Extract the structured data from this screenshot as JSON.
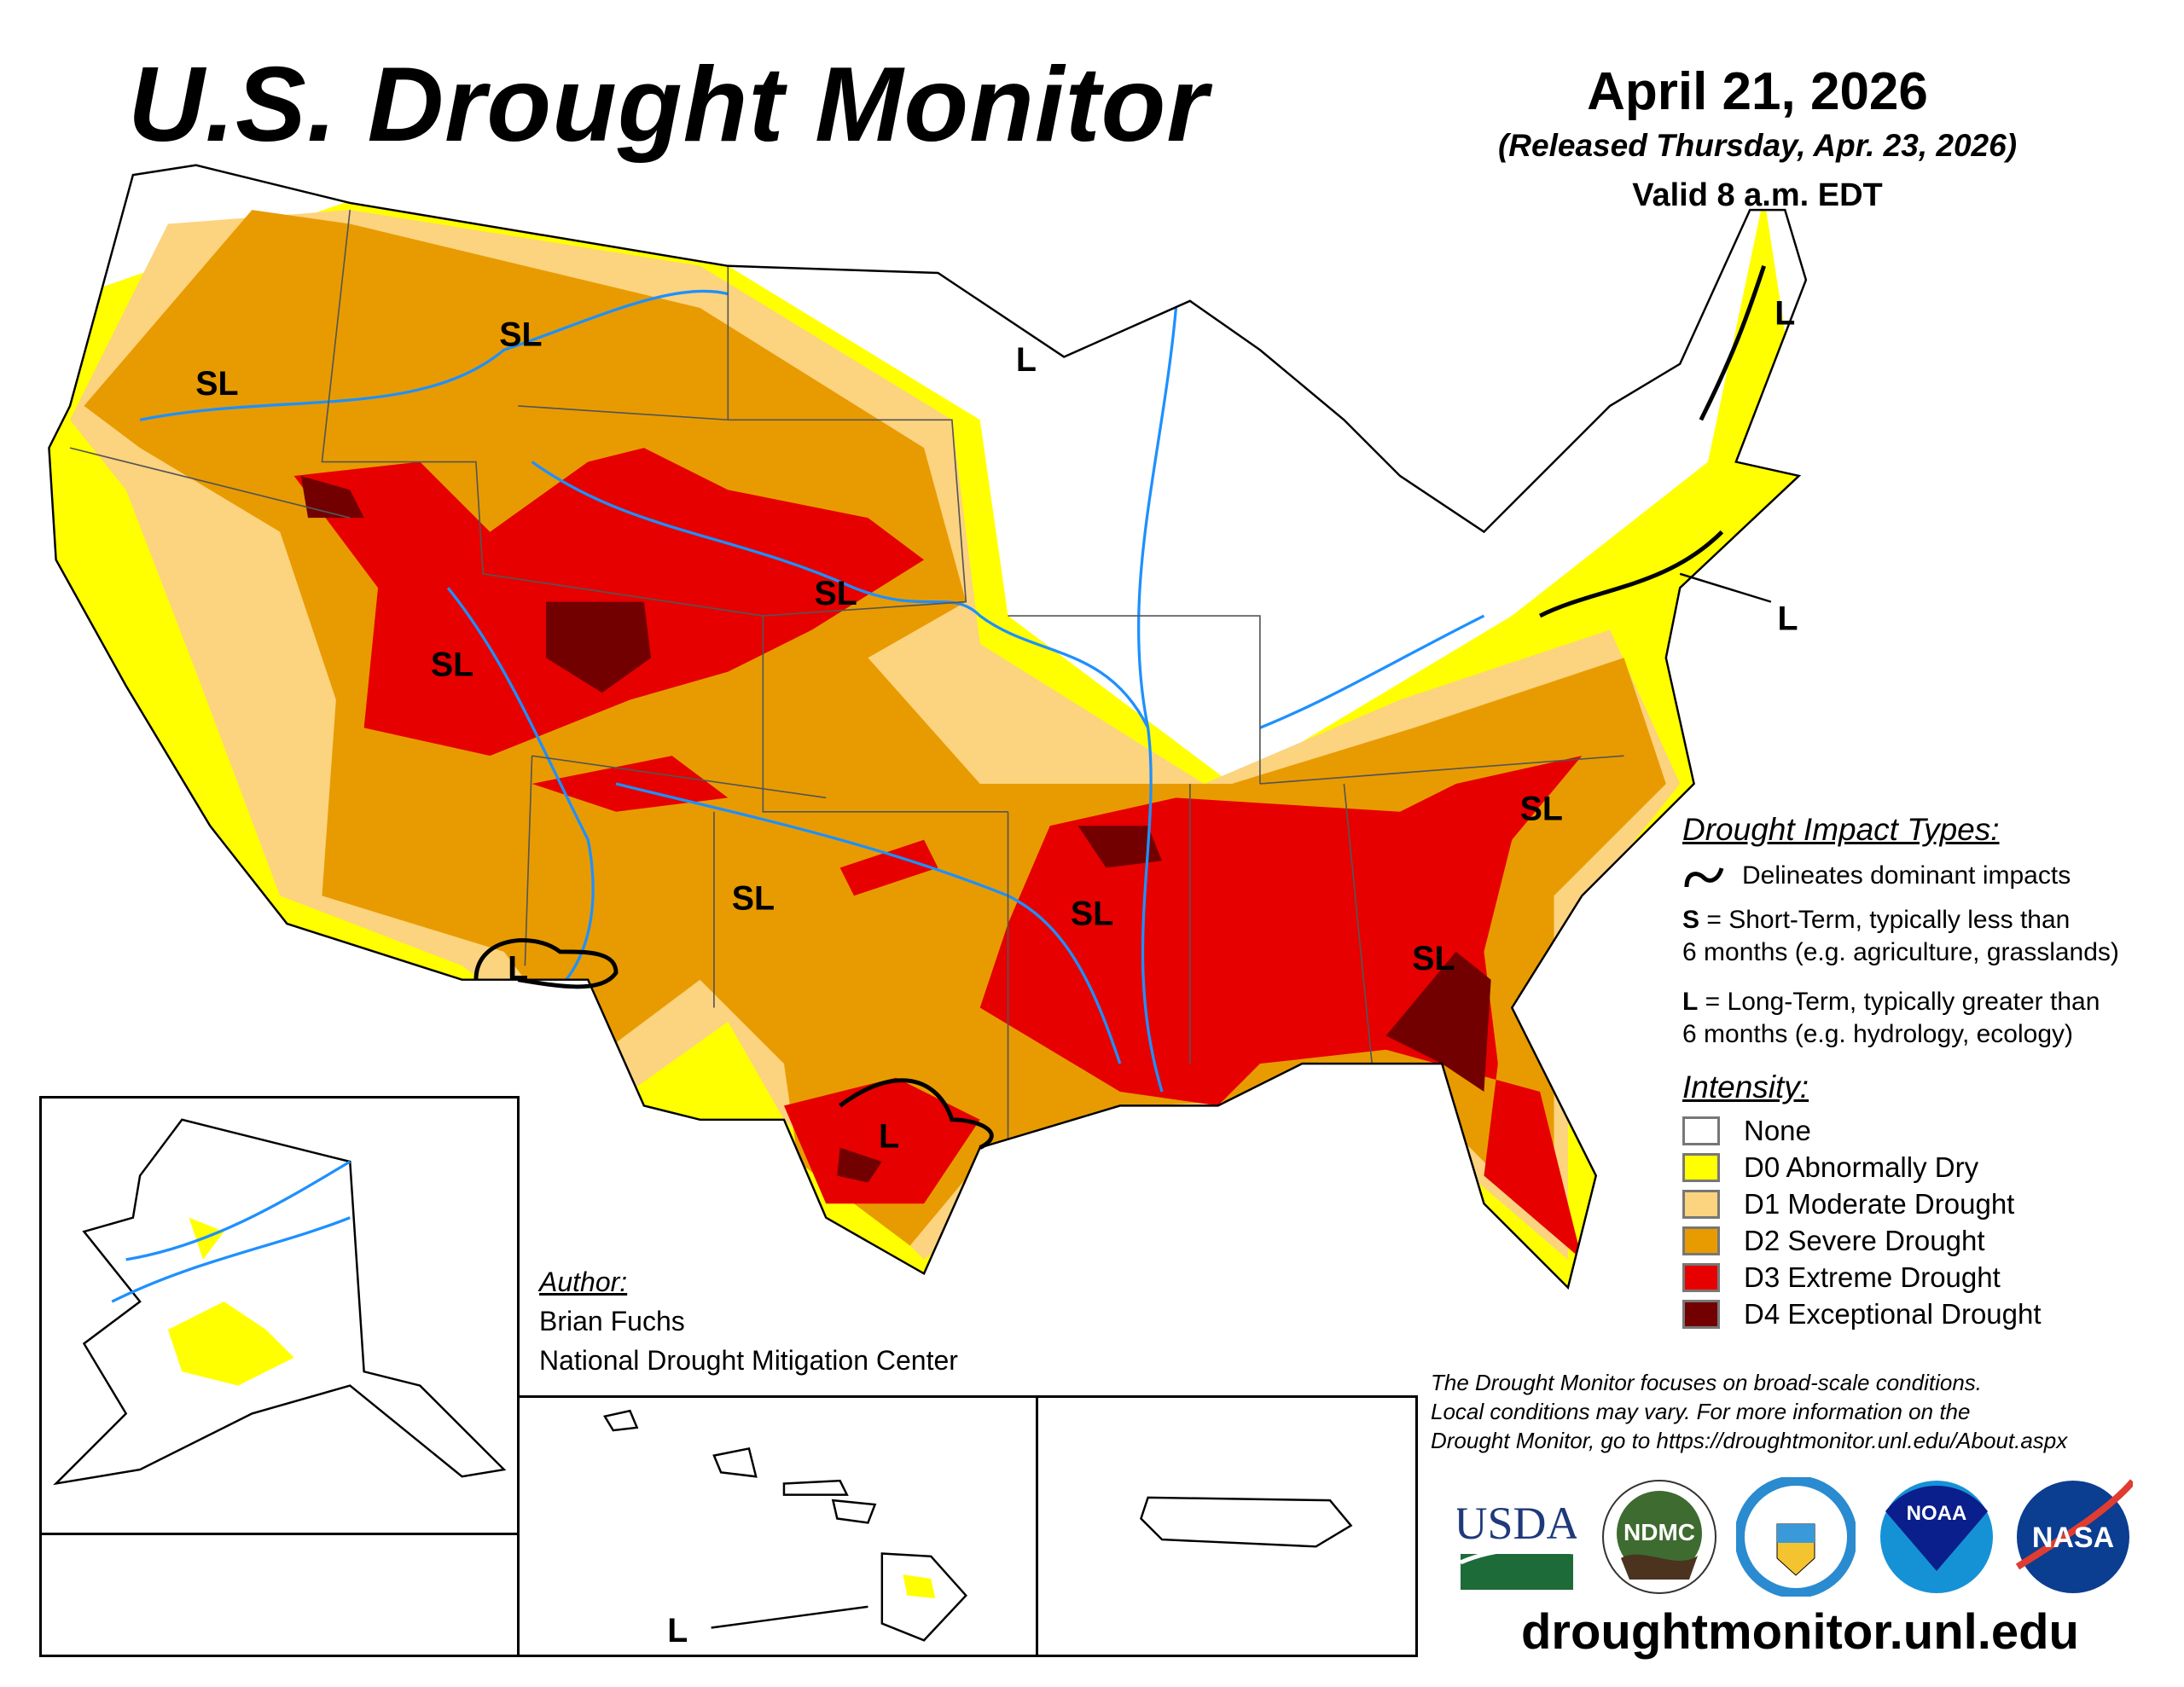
{
  "header": {
    "title": "U.S. Drought Monitor",
    "date": "April 21, 2026",
    "released": "(Released Thursday, Apr. 23, 2026)",
    "valid": "Valid 8 a.m. EDT"
  },
  "map": {
    "labels": [
      "SL",
      "SL",
      "L",
      "L",
      "L",
      "SL",
      "SL",
      "SL",
      "SL",
      "SL",
      "SL",
      "L",
      "L",
      "L"
    ],
    "colors": {
      "none": "#FFFFFF",
      "D0": "#FFFF00",
      "D1": "#FCD37F",
      "D2": "#E89B00",
      "D3": "#E60000",
      "D4": "#730000",
      "water": "#1E90FF"
    }
  },
  "legend": {
    "impact_title": "Drought Impact Types:",
    "delineates": "Delineates dominant impacts",
    "s_key": "S",
    "s_text": " = Short-Term, typically less than",
    "s_text2": "6 months (e.g. agriculture, grasslands)",
    "l_key": "L",
    "l_text": " = Long-Term, typically greater than",
    "l_text2": "6 months (e.g. hydrology, ecology)",
    "intensity_title": "Intensity:",
    "items": [
      {
        "label": "None",
        "color": "#FFFFFF"
      },
      {
        "label": "D0 Abnormally Dry",
        "color": "#FFFF00"
      },
      {
        "label": "D1 Moderate Drought",
        "color": "#FCD37F"
      },
      {
        "label": "D2 Severe Drought",
        "color": "#E89B00"
      },
      {
        "label": "D3 Extreme Drought",
        "color": "#E60000"
      },
      {
        "label": "D4 Exceptional Drought",
        "color": "#730000"
      }
    ]
  },
  "author": {
    "heading": "Author:",
    "name": "Brian Fuchs",
    "org": "National Drought Mitigation Center"
  },
  "footer": {
    "note1": "The Drought Monitor focuses on broad-scale conditions.",
    "note2": "Local conditions may vary. For more information on the",
    "note3": "Drought Monitor, go to https://droughtmonitor.unl.edu/About.aspx",
    "url": "droughtmonitor.unl.edu",
    "logos": [
      "USDA",
      "NDMC",
      "Department of Commerce",
      "NOAA",
      "NASA"
    ]
  }
}
